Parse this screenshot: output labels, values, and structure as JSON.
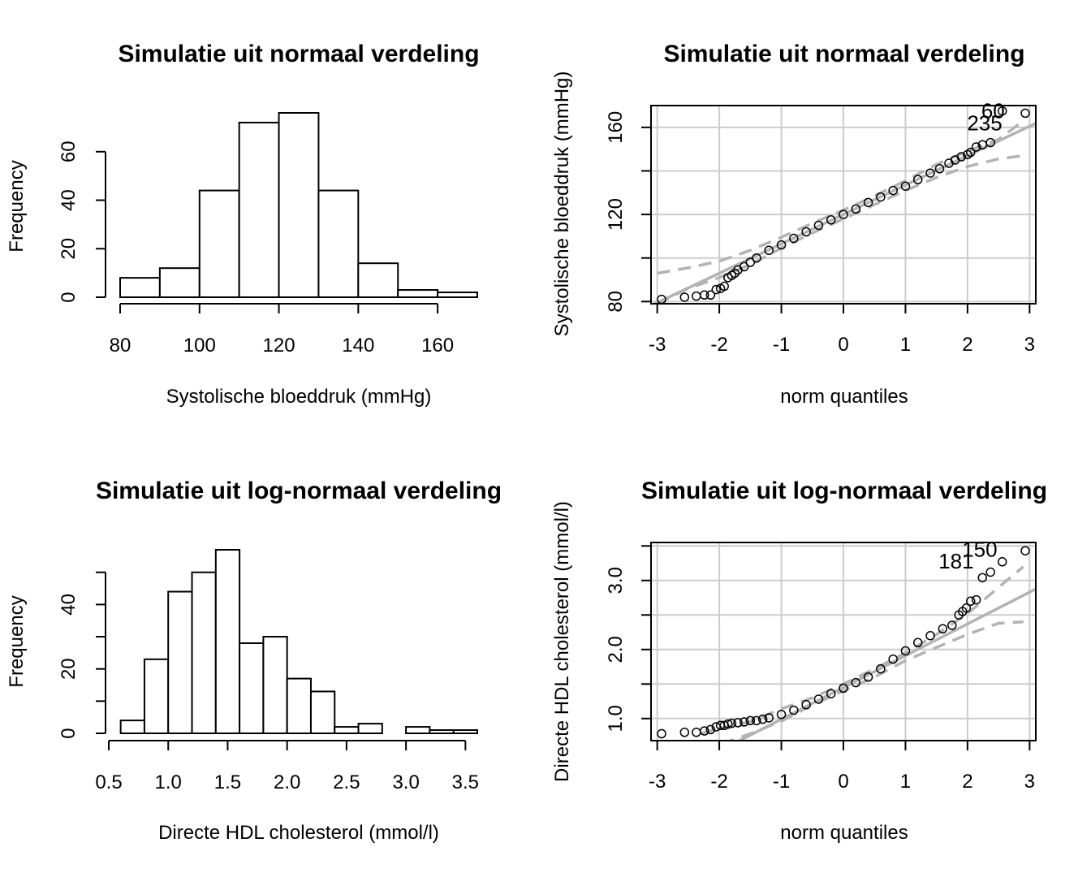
{
  "chart_data": [
    {
      "type": "bar",
      "subtype": "histogram",
      "title": "Simulatie uit normaal verdeling",
      "xlabel": "Systolische bloeddruk (mmHg)",
      "ylabel": "Frequency",
      "bin_edges": [
        80,
        90,
        100,
        110,
        120,
        130,
        140,
        150,
        160,
        170
      ],
      "values": [
        8,
        12,
        44,
        72,
        76,
        44,
        14,
        3,
        2
      ],
      "xlim": [
        80,
        170
      ],
      "ylim": [
        0,
        76
      ],
      "x_ticks": [
        80,
        100,
        120,
        140,
        160
      ],
      "x_tick_labels": [
        "80",
        "100",
        "120",
        "140",
        "160"
      ],
      "y_ticks": [
        0,
        20,
        40,
        60
      ],
      "y_tick_labels": [
        "0",
        "20",
        "40",
        "60"
      ],
      "fill": "#ffffff",
      "edge_color": "#000000"
    },
    {
      "type": "scatter",
      "subtype": "qq-plot",
      "title": "Simulatie uit normaal verdeling",
      "xlabel": "norm quantiles",
      "ylabel": "Systolische bloeddruk (mmHg)",
      "xlim": [
        -3.1,
        3.1
      ],
      "ylim": [
        79,
        170
      ],
      "grid": true,
      "x_ticks": [
        -3,
        -2,
        -1,
        0,
        1,
        2,
        3
      ],
      "x_tick_labels": [
        "-3",
        "-2",
        "-1",
        "0",
        "1",
        "2",
        "3"
      ],
      "y_ticks": [
        80,
        100,
        120,
        140,
        160
      ],
      "y_tick_labels": [
        "80",
        "",
        "120",
        "",
        "160"
      ],
      "reference_line": {
        "intercept": 120,
        "slope": 13.5
      },
      "envelope": {
        "x": [
          -3,
          -2.5,
          -2,
          -1.5,
          -1,
          -0.5,
          0,
          0.5,
          1,
          1.5,
          2,
          2.5,
          2.9
        ],
        "lower": [
          79,
          86,
          91,
          97,
          104.5,
          111.5,
          118,
          124.5,
          131,
          137,
          142,
          145.5,
          147
        ],
        "upper": [
          93,
          95.5,
          98.5,
          103.5,
          109.5,
          116,
          122,
          128.5,
          135.5,
          143,
          149,
          154.5,
          163
        ]
      },
      "series": [
        {
          "values_x": [
            -2.93,
            -2.56,
            -2.37,
            -2.24,
            -2.14,
            -2.05,
            -1.98,
            -1.92,
            -1.86,
            -1.8,
            -1.75,
            -1.7,
            -1.6,
            -1.5,
            -1.4,
            -1.2,
            -1.0,
            -0.8,
            -0.6,
            -0.4,
            -0.2,
            0.0,
            0.2,
            0.4,
            0.6,
            0.8,
            1.0,
            1.2,
            1.4,
            1.55,
            1.7,
            1.8,
            1.9,
            2.0,
            2.05,
            2.14,
            2.24,
            2.37,
            2.56,
            2.93
          ],
          "values_y": [
            81,
            82,
            82.5,
            83,
            83,
            85.5,
            86,
            87,
            91,
            92,
            93,
            94.5,
            96,
            98,
            100,
            103.5,
            106,
            109,
            112,
            115,
            117.5,
            120,
            122.5,
            125.5,
            128,
            131,
            133,
            136,
            139,
            141,
            143.5,
            145,
            146.5,
            147.5,
            148.5,
            151,
            152,
            153,
            167.5,
            166.5
          ]
        }
      ],
      "point_labels": [
        {
          "text": "235",
          "x": 2.56,
          "y": 162
        },
        {
          "text": "60",
          "x": 2.6,
          "y": 167.5
        }
      ]
    },
    {
      "type": "bar",
      "subtype": "histogram",
      "title": "Simulatie uit log-normaal verdeling",
      "xlabel": "Directe HDL cholesterol (mmol/l)",
      "ylabel": "Frequency",
      "bin_edges": [
        0.6,
        0.8,
        1.0,
        1.2,
        1.4,
        1.6,
        1.8,
        2.0,
        2.2,
        2.4,
        2.6,
        2.8,
        3.0,
        3.2,
        3.4,
        3.6
      ],
      "values": [
        4,
        23,
        44,
        50,
        57,
        28,
        30,
        17,
        13,
        2,
        3,
        0,
        2,
        1,
        1
      ],
      "xlim": [
        0.5,
        3.6
      ],
      "ylim": [
        0,
        57
      ],
      "x_ticks": [
        0.5,
        1.0,
        1.5,
        2.0,
        2.5,
        3.0,
        3.5
      ],
      "x_tick_labels": [
        "0.5",
        "1.0",
        "1.5",
        "2.0",
        "2.5",
        "3.0",
        "3.5"
      ],
      "y_ticks": [
        0,
        10,
        20,
        30,
        40,
        50
      ],
      "y_tick_labels": [
        "0",
        "",
        "20",
        "",
        "40",
        ""
      ],
      "fill": "#ffffff",
      "edge_color": "#000000"
    },
    {
      "type": "scatter",
      "subtype": "qq-plot",
      "title": "Simulatie uit log-normaal verdeling",
      "xlabel": "norm quantiles",
      "ylabel": "Directe HDL cholesterol (mmol/l)",
      "xlim": [
        -3.1,
        3.1
      ],
      "ylim": [
        0.68,
        3.55
      ],
      "grid": true,
      "x_ticks": [
        -3,
        -2,
        -1,
        0,
        1,
        2,
        3
      ],
      "x_tick_labels": [
        "-3",
        "-2",
        "-1",
        "0",
        "1",
        "2",
        "3"
      ],
      "y_ticks": [
        1.0,
        1.5,
        2.0,
        2.5,
        3.0,
        3.5
      ],
      "y_tick_labels": [
        "1.0",
        "",
        "2.0",
        "",
        "3.0",
        ""
      ],
      "reference_line": {
        "intercept": 1.45,
        "slope": 0.46
      },
      "envelope": {
        "x": [
          -2.3,
          -2,
          -1.5,
          -1,
          -0.5,
          0,
          0.5,
          1,
          1.5,
          2,
          2.5,
          2.9
        ],
        "lower": [
          0.6,
          0.62,
          0.78,
          0.96,
          1.2,
          1.4,
          1.6,
          1.84,
          2.03,
          2.22,
          2.38,
          2.4
        ],
        "upper": [
          0.78,
          0.86,
          0.95,
          1.14,
          1.3,
          1.5,
          1.72,
          1.95,
          2.22,
          2.52,
          2.9,
          3.2
        ]
      },
      "series": [
        {
          "values_x": [
            -2.93,
            -2.56,
            -2.37,
            -2.24,
            -2.14,
            -2.05,
            -1.98,
            -1.92,
            -1.86,
            -1.8,
            -1.7,
            -1.6,
            -1.5,
            -1.4,
            -1.3,
            -1.2,
            -1.0,
            -0.8,
            -0.6,
            -0.4,
            -0.2,
            0.0,
            0.2,
            0.4,
            0.6,
            0.8,
            1.0,
            1.2,
            1.4,
            1.6,
            1.75,
            1.86,
            1.92,
            1.98,
            2.05,
            2.14,
            2.24,
            2.37,
            2.56,
            2.93
          ],
          "values_y": [
            0.78,
            0.8,
            0.8,
            0.82,
            0.84,
            0.88,
            0.9,
            0.9,
            0.92,
            0.93,
            0.94,
            0.95,
            0.97,
            0.97,
            0.99,
            1.01,
            1.06,
            1.12,
            1.2,
            1.28,
            1.36,
            1.44,
            1.52,
            1.6,
            1.72,
            1.86,
            1.98,
            2.1,
            2.2,
            2.3,
            2.35,
            2.5,
            2.55,
            2.6,
            2.7,
            2.72,
            3.04,
            3.12,
            3.27,
            3.43
          ]
        }
      ],
      "point_labels": [
        {
          "text": "181",
          "x": 2.1,
          "y": 3.28
        },
        {
          "text": "150",
          "x": 2.48,
          "y": 3.45
        }
      ]
    }
  ]
}
